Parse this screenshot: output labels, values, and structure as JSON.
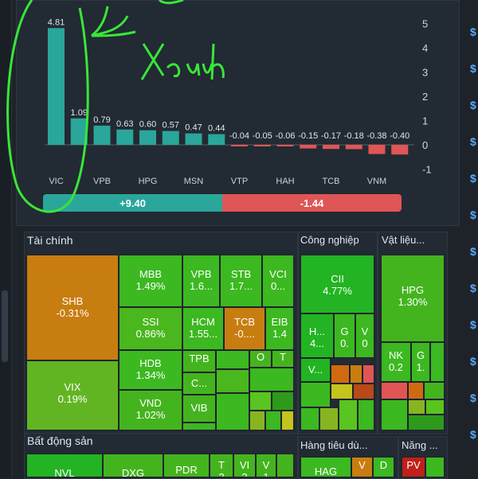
{
  "chart": {
    "chart_data": {
      "type": "bar",
      "categories": [
        "VIC",
        "",
        "VPB",
        "",
        "HPG",
        "",
        "MSN",
        "",
        "VTP",
        "",
        "HAH",
        "",
        "TCB",
        "",
        "VNM",
        ""
      ],
      "values": [
        4.81,
        1.09,
        0.79,
        0.63,
        0.6,
        0.57,
        0.47,
        0.44,
        -0.04,
        -0.05,
        -0.06,
        -0.15,
        -0.17,
        -0.18,
        -0.38,
        -0.4
      ],
      "labels": [
        "4.81",
        "1.09",
        "0.79",
        "0.63",
        "0.60",
        "0.57",
        "0.47",
        "0.44",
        "-0.04",
        "-0.05",
        "-0.06",
        "-0.15",
        "-0.17",
        "-0.18",
        "-0.38",
        "-0.40"
      ],
      "yticks": [
        "5",
        "4",
        "3",
        "2",
        "1",
        "0",
        "-1"
      ],
      "ylim": [
        -1,
        5
      ],
      "colors": {
        "positive": "#2aa69a",
        "negative": "#e05555"
      }
    },
    "summary": {
      "positive": "+9.40",
      "negative": "-1.44"
    },
    "annotation": "Xanh"
  },
  "sectors": {
    "finance": {
      "title": "Tài chính"
    },
    "industry": {
      "title": "Công nghiệp"
    },
    "materials": {
      "title": "Vật liệu..."
    },
    "realestate": {
      "title": "Bất động sản"
    },
    "consumer": {
      "title": "Hàng tiêu dù..."
    },
    "energy": {
      "title": "Năng ..."
    }
  },
  "tiles": {
    "shb": {
      "t": "SHB",
      "v": "-0.31%"
    },
    "vix": {
      "t": "VIX",
      "v": "0.19%"
    },
    "mbb": {
      "t": "MBB",
      "v": "1.49%"
    },
    "ssi": {
      "t": "SSI",
      "v": "0.86%"
    },
    "hdb": {
      "t": "HDB",
      "v": "1.34%"
    },
    "vnd": {
      "t": "VND",
      "v": "1.02%"
    },
    "vpb": {
      "t": "VPB",
      "v": "1.6..."
    },
    "hcm": {
      "t": "HCM",
      "v": "1.55..."
    },
    "stb": {
      "t": "STB",
      "v": "1.7..."
    },
    "tcb": {
      "t": "TCB",
      "v": "-0...."
    },
    "vci": {
      "t": "VCI",
      "v": "0..."
    },
    "eib": {
      "t": "EIB",
      "v": "1.4"
    },
    "tpb": {
      "t": "TPB"
    },
    "c": {
      "t": "C..."
    },
    "vib": {
      "t": "VIB"
    },
    "o": {
      "t": "O"
    },
    "t": {
      "t": "T"
    },
    "cii": {
      "t": "CII",
      "v": "4.77%"
    },
    "h": {
      "t": "H...",
      "v": "4..."
    },
    "g": {
      "t": "G",
      "v": "0."
    },
    "v2": {
      "t": "V",
      "v": "0"
    },
    "vv": {
      "t": "V..."
    },
    "hpg": {
      "t": "HPG",
      "v": "1.30%"
    },
    "nk": {
      "t": "NK",
      "v": "0.2"
    },
    "g2": {
      "t": "G",
      "v": "1."
    },
    "nvl": {
      "t": "NVL"
    },
    "dxg": {
      "t": "DXG"
    },
    "pdr": {
      "t": "PDR"
    },
    "t2": {
      "t": "T",
      "v": "2"
    },
    "vi": {
      "t": "VI",
      "v": "2"
    },
    "v1": {
      "t": "V",
      "v": "1"
    },
    "hag": {
      "t": "HAG"
    },
    "vc": {
      "t": "V"
    },
    "d": {
      "t": "D"
    },
    "pv": {
      "t": "PV"
    }
  },
  "right_edge": {
    "symbol": "$"
  }
}
